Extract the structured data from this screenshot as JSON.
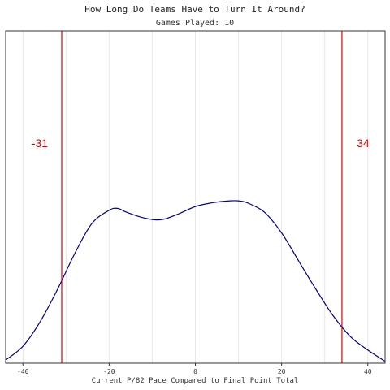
{
  "chart_data": {
    "type": "area",
    "title": "How Long Do Teams Have to Turn It Around?",
    "subtitle": "Games Played: 10",
    "xlabel": "Current P/82 Pace Compared to Final Point Total",
    "ylabel": "",
    "xlim": [
      -44,
      44
    ],
    "ylim": [
      0,
      0.0176
    ],
    "x_ticks": [
      -40,
      -20,
      0,
      20,
      40
    ],
    "x_tick_labels": [
      "-40",
      "-20",
      "0",
      "20",
      "40"
    ],
    "grid": true,
    "series": [
      {
        "x": [
          -44,
          -40,
          -36,
          -32,
          -28,
          -24,
          -20,
          -18,
          -16,
          -12,
          -8,
          -4,
          0,
          4,
          8,
          10,
          12,
          16,
          20,
          24,
          28,
          32,
          36,
          40,
          44
        ],
        "y": [
          0.00017,
          0.0009,
          0.0022,
          0.0039,
          0.0058,
          0.0074,
          0.0081,
          0.0082,
          0.008,
          0.0077,
          0.0076,
          0.0079,
          0.0083,
          0.0085,
          0.0086,
          0.0086,
          0.0085,
          0.008,
          0.0069,
          0.0054,
          0.0039,
          0.0025,
          0.0014,
          0.0007,
          0.0001
        ]
      }
    ],
    "vlines": [
      {
        "x": -31,
        "label": "-31"
      },
      {
        "x": 34,
        "label": "34"
      }
    ],
    "colors": {
      "curve": "#00008b",
      "vline": "#dd0000",
      "grid": "#e8e8e8",
      "border": "#333333"
    }
  }
}
